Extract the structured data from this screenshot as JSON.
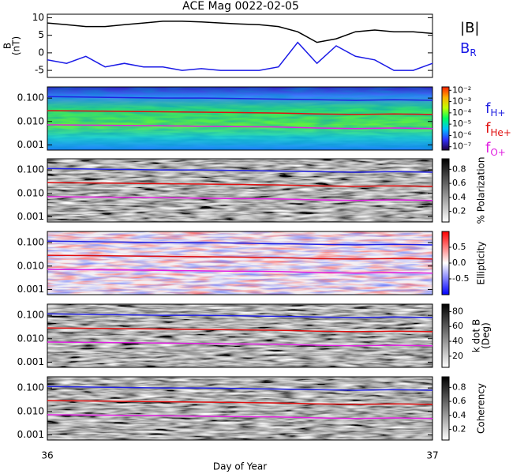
{
  "chart_data": [
    {
      "type": "line",
      "title": "ACE Mag 0022-02-05",
      "y_label": [
        "B",
        "(nT)"
      ],
      "xlim": [
        36,
        37
      ],
      "ylim": [
        -7,
        11
      ],
      "yticks": [
        -5,
        0,
        5,
        10
      ],
      "legend": true,
      "x": [
        36.0,
        36.05,
        36.1,
        36.15,
        36.2,
        36.25,
        36.3,
        36.35,
        36.4,
        36.45,
        36.5,
        36.55,
        36.6,
        36.65,
        36.7,
        36.75,
        36.8,
        36.85,
        36.9,
        36.95,
        37.0
      ],
      "series": [
        {
          "name": "|B|",
          "color": "#000000",
          "values": [
            8.5,
            8,
            7.5,
            7.5,
            8,
            8.5,
            9,
            9,
            8.8,
            8.5,
            8.2,
            8,
            7.5,
            6,
            3,
            4,
            6,
            6.5,
            6,
            6,
            5.5
          ]
        },
        {
          "name": "B",
          "subscript": "R",
          "color": "#1a1ae6",
          "values": [
            -2,
            -3,
            -1,
            -4,
            -3,
            -4,
            -4,
            -5,
            -4.5,
            -5,
            -5,
            -5,
            -4,
            3,
            -3,
            2,
            -1,
            -2,
            -5,
            -5,
            -3
          ]
        }
      ]
    },
    {
      "type": "spectrogram",
      "xlim": [
        36,
        37
      ],
      "ylim": [
        0.0006,
        0.3
      ],
      "ylog": true,
      "yticks": [
        0.001,
        {
          "value": 0.01,
          "label": "0.010"
        },
        {
          "value": 0.1,
          "label": "0.100"
        }
      ],
      "legend": true,
      "x": [
        36.0,
        36.1,
        36.2,
        36.3,
        36.4,
        36.5,
        36.6,
        36.7,
        36.8,
        36.9,
        37.0
      ],
      "series": [
        {
          "name": "f",
          "subscript": "H+",
          "color": "#2020e0",
          "values": [
            0.115,
            0.11,
            0.105,
            0.1,
            0.1,
            0.095,
            0.09,
            0.085,
            0.08,
            0.085,
            0.08
          ]
        },
        {
          "name": "f",
          "subscript": "He+",
          "color": "#e01010",
          "values": [
            0.029,
            0.028,
            0.027,
            0.026,
            0.025,
            0.024,
            0.023,
            0.021,
            0.02,
            0.021,
            0.02
          ]
        },
        {
          "name": "f",
          "subscript": "O+",
          "color": "#e020e0",
          "values": [
            0.0072,
            0.007,
            0.0068,
            0.0065,
            0.0062,
            0.006,
            0.0058,
            0.0053,
            0.005,
            0.0053,
            0.005
          ]
        }
      ],
      "colorbar": {
        "clim": [
          -7.3,
          -1.7
        ],
        "colormap": [
          "#200040",
          "#3030ff",
          "#00c0ff",
          "#00ff60",
          "#c0ff00",
          "#ffb000",
          "#ff2000"
        ],
        "ticks": [
          {
            "value": -2,
            "label": "10⁻²"
          },
          {
            "value": -3,
            "label": "10⁻³"
          },
          {
            "value": -4,
            "label": "10⁻⁴"
          },
          {
            "value": -5,
            "label": "10⁻⁵"
          },
          {
            "value": -6,
            "label": "10⁻⁶"
          },
          {
            "value": -7,
            "label": "10⁻⁷"
          }
        ]
      }
    },
    {
      "type": "spectrogram",
      "xlim": [
        36,
        37
      ],
      "ylim": [
        0.0006,
        0.3
      ],
      "ylog": true,
      "yticks": [
        0.001,
        {
          "value": 0.01,
          "label": "0.010"
        },
        {
          "value": 0.1,
          "label": "0.100"
        }
      ],
      "legend": false,
      "x": [
        36.0,
        36.1,
        36.2,
        36.3,
        36.4,
        36.5,
        36.6,
        36.7,
        36.8,
        36.9,
        37.0
      ],
      "series": [
        {
          "color": "#2020e0",
          "values": [
            0.115,
            0.11,
            0.105,
            0.1,
            0.1,
            0.095,
            0.09,
            0.085,
            0.08,
            0.085,
            0.08
          ]
        },
        {
          "color": "#e01010",
          "values": [
            0.029,
            0.028,
            0.027,
            0.026,
            0.025,
            0.024,
            0.023,
            0.021,
            0.02,
            0.021,
            0.02
          ]
        },
        {
          "color": "#e020e0",
          "values": [
            0.0072,
            0.007,
            0.0068,
            0.0065,
            0.0062,
            0.006,
            0.0058,
            0.0053,
            0.005,
            0.0053,
            0.005
          ]
        }
      ],
      "colorbar": {
        "clim": [
          0.05,
          0.95
        ],
        "colormap": [
          "#ffffff",
          "#000000"
        ],
        "ticks": [
          0.2,
          0.4,
          0.6,
          0.8
        ],
        "label": [
          "% Polarization"
        ]
      }
    },
    {
      "type": "spectrogram",
      "xlim": [
        36,
        37
      ],
      "ylim": [
        0.0006,
        0.3
      ],
      "ylog": true,
      "yticks": [
        0.001,
        {
          "value": 0.01,
          "label": "0.010"
        },
        {
          "value": 0.1,
          "label": "0.100"
        }
      ],
      "legend": false,
      "x": [
        36.0,
        36.1,
        36.2,
        36.3,
        36.4,
        36.5,
        36.6,
        36.7,
        36.8,
        36.9,
        37.0
      ],
      "series": [
        {
          "color": "#2020e0",
          "values": [
            0.115,
            0.11,
            0.105,
            0.1,
            0.1,
            0.095,
            0.09,
            0.085,
            0.08,
            0.085,
            0.08
          ]
        },
        {
          "color": "#e01010",
          "values": [
            0.029,
            0.028,
            0.027,
            0.026,
            0.025,
            0.024,
            0.023,
            0.021,
            0.02,
            0.021,
            0.02
          ]
        },
        {
          "color": "#e020e0",
          "values": [
            0.0072,
            0.007,
            0.0068,
            0.0065,
            0.0062,
            0.006,
            0.0058,
            0.0053,
            0.005,
            0.0053,
            0.005
          ]
        }
      ],
      "colorbar": {
        "clim": [
          -1,
          1
        ],
        "colormap": [
          "#0000ff",
          "#ffffff",
          "#ff0000"
        ],
        "ticks": [
          -0.5,
          {
            "value": 0,
            "label": "0.0"
          },
          0.5
        ],
        "label": [
          "Ellipticity"
        ]
      }
    },
    {
      "type": "spectrogram",
      "xlim": [
        36,
        37
      ],
      "ylim": [
        0.0006,
        0.3
      ],
      "ylog": true,
      "yticks": [
        0.001,
        {
          "value": 0.01,
          "label": "0.010"
        },
        {
          "value": 0.1,
          "label": "0.100"
        }
      ],
      "legend": false,
      "x": [
        36.0,
        36.1,
        36.2,
        36.3,
        36.4,
        36.5,
        36.6,
        36.7,
        36.8,
        36.9,
        37.0
      ],
      "series": [
        {
          "color": "#2020e0",
          "values": [
            0.115,
            0.11,
            0.105,
            0.1,
            0.1,
            0.095,
            0.09,
            0.085,
            0.08,
            0.085,
            0.08
          ]
        },
        {
          "color": "#e01010",
          "values": [
            0.029,
            0.028,
            0.027,
            0.026,
            0.025,
            0.024,
            0.023,
            0.021,
            0.02,
            0.021,
            0.02
          ]
        },
        {
          "color": "#e020e0",
          "values": [
            0.0072,
            0.007,
            0.0068,
            0.0065,
            0.0062,
            0.006,
            0.0058,
            0.0053,
            0.005,
            0.0053,
            0.005
          ]
        }
      ],
      "colorbar": {
        "clim": [
          5,
          90
        ],
        "colormap": [
          "#ffffff",
          "#000000"
        ],
        "ticks": [
          20,
          40,
          60,
          80
        ],
        "label": [
          "k dot B",
          "(Deg)"
        ]
      }
    },
    {
      "type": "spectrogram",
      "xlim": [
        36,
        37
      ],
      "ylim": [
        0.0006,
        0.3
      ],
      "ylog": true,
      "yticks": [
        0.001,
        {
          "value": 0.01,
          "label": "0.010"
        },
        {
          "value": 0.1,
          "label": "0.100"
        }
      ],
      "legend": false,
      "x": [
        36.0,
        36.1,
        36.2,
        36.3,
        36.4,
        36.5,
        36.6,
        36.7,
        36.8,
        36.9,
        37.0
      ],
      "series": [
        {
          "color": "#2020e0",
          "values": [
            0.115,
            0.11,
            0.105,
            0.1,
            0.1,
            0.095,
            0.09,
            0.085,
            0.08,
            0.085,
            0.08
          ]
        },
        {
          "color": "#e01010",
          "values": [
            0.029,
            0.028,
            0.027,
            0.026,
            0.025,
            0.024,
            0.023,
            0.021,
            0.02,
            0.021,
            0.02
          ]
        },
        {
          "color": "#e020e0",
          "values": [
            0.0072,
            0.007,
            0.0068,
            0.0065,
            0.0062,
            0.006,
            0.0058,
            0.0053,
            0.005,
            0.0053,
            0.005
          ]
        }
      ],
      "colorbar": {
        "clim": [
          0.05,
          0.95
        ],
        "colormap": [
          "#ffffff",
          "#000000"
        ],
        "ticks": [
          0.2,
          0.4,
          0.6,
          0.8
        ],
        "label": [
          "Coherency"
        ]
      },
      "xticks": [
        36,
        37
      ],
      "x_label": "Day of Year"
    }
  ]
}
